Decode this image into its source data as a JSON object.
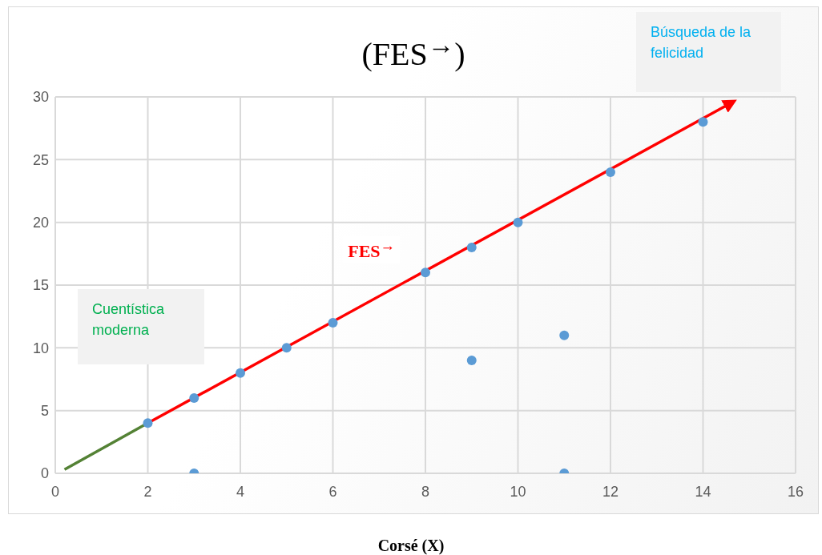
{
  "chart_data": {
    "type": "scatter",
    "title": "(FES$^{→}$)",
    "xlabel": "Corsé (X)",
    "xlim": [
      0,
      16
    ],
    "xticks": [
      0,
      2,
      4,
      6,
      8,
      10,
      12,
      14,
      16
    ],
    "ylim": [
      0,
      30
    ],
    "yticks": [
      0,
      5,
      10,
      15,
      20,
      25,
      30
    ],
    "grid": true,
    "series": [
      {
        "color": "#5b9bd5",
        "x": [
          2,
          3,
          3,
          4,
          5,
          6,
          8,
          9,
          9,
          10,
          11,
          11,
          12,
          14
        ],
        "values": [
          4,
          6,
          0,
          8,
          10,
          12,
          16,
          18,
          9,
          20,
          11,
          0,
          24,
          28
        ]
      },
      {
        "type": "line",
        "color": "#548235",
        "x": [
          0.2,
          2
        ],
        "values": [
          0.3,
          4
        ]
      },
      {
        "type": "line",
        "color": "#ff0000",
        "x": [
          2,
          14.6
        ],
        "values": [
          4,
          29.5
        ]
      }
    ],
    "annotations": [
      "FES$^{→}$",
      "Cuentística moderna",
      "Búsqueda de la felicidad"
    ]
  }
}
